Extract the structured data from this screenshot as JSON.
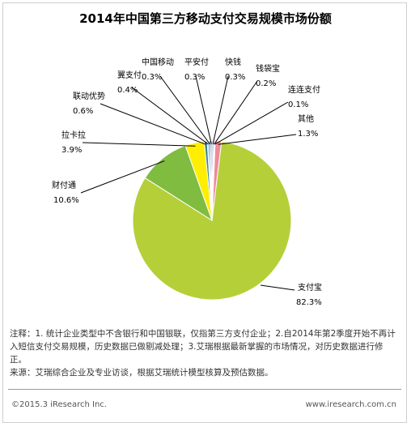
{
  "title": "2014年中国第三方移动支付交易规模市场份额",
  "chart_data": {
    "type": "pie",
    "title": "2014年中国第三方移动支付交易规模市场份额",
    "unit": "%",
    "slices": [
      {
        "name": "支付宝",
        "value": 82.3,
        "label": "82.3%",
        "color": "#b5cf39"
      },
      {
        "name": "财付通",
        "value": 10.6,
        "label": "10.6%",
        "color": "#7fbc3f"
      },
      {
        "name": "拉卡拉",
        "value": 3.9,
        "label": "3.9%",
        "color": "#ffee00"
      },
      {
        "name": "联动优势",
        "value": 0.6,
        "label": "0.6%",
        "color": "#3c7f8f"
      },
      {
        "name": "翼支付",
        "value": 0.4,
        "label": "0.4%",
        "color": "#9acfe6"
      },
      {
        "name": "中国移动",
        "value": 0.3,
        "label": "0.3%",
        "color": "#1f4d8a"
      },
      {
        "name": "平安付",
        "value": 0.3,
        "label": "0.3%",
        "color": "#7fa8d8"
      },
      {
        "name": "快钱",
        "value": 0.3,
        "label": "0.3%",
        "color": "#8080c0"
      },
      {
        "name": "钱袋宝",
        "value": 0.2,
        "label": "0.2%",
        "color": "#c0a0d0"
      },
      {
        "name": "连连支付",
        "value": 0.1,
        "label": "0.1%",
        "color": "#6fb0a0"
      },
      {
        "name": "其他",
        "value": 1.3,
        "label": "1.3%",
        "color": "#f08a9a"
      }
    ]
  },
  "notes": {
    "line1": "注释：1. 统计企业类型中不含银行和中国银联，仅指第三方支付企业；2.自2014年第2季度开始不再计入短信支付交易规模，历史数据已做剔减处理；3.艾瑞根据最新掌握的市场情况，对历史数据进行修正。",
    "line2": "来源：艾瑞综合企业及专业访谈，根据艾瑞统计模型核算及预估数据。"
  },
  "footer": {
    "copyright": "©2015.3 iResearch Inc.",
    "website": "www.iresearch.com.cn"
  }
}
